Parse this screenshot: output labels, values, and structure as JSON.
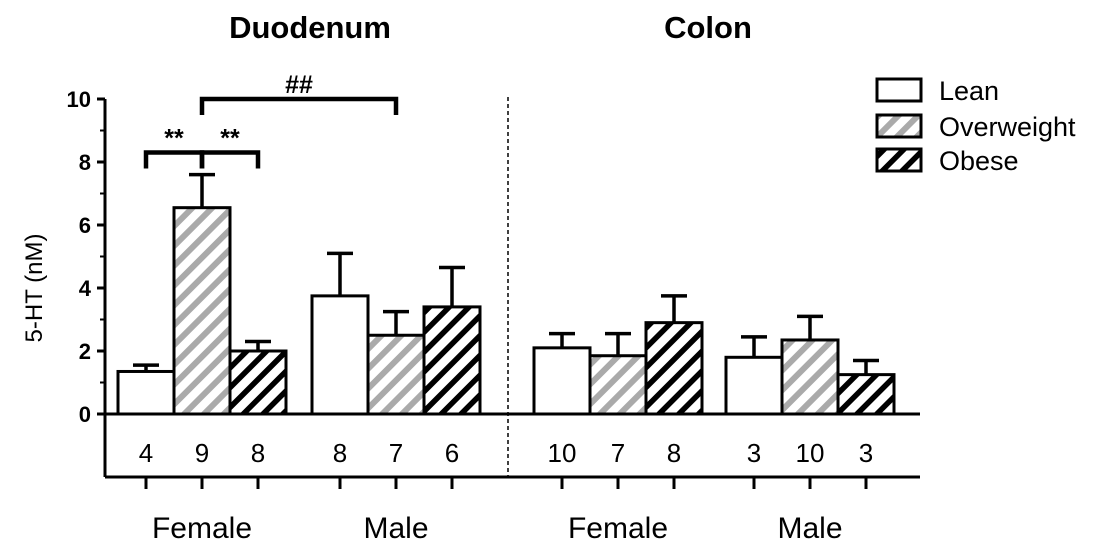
{
  "chart_data": {
    "type": "bar",
    "ylabel": "5-HT (nM)",
    "ylim": [
      0,
      10
    ],
    "yticks": [
      "0",
      "2",
      "4",
      "6",
      "8",
      "10"
    ],
    "panels": [
      {
        "title": "Duodenum",
        "groups": [
          {
            "label": "Female",
            "values": [
              1.35,
              6.55,
              2.0
            ],
            "errors": [
              0.2,
              1.05,
              0.3
            ],
            "n": [
              "4",
              "9",
              "8"
            ]
          },
          {
            "label": "Male",
            "values": [
              3.75,
              2.5,
              3.4
            ],
            "errors": [
              1.35,
              0.75,
              1.25
            ],
            "n": [
              "8",
              "7",
              "6"
            ]
          }
        ]
      },
      {
        "title": "Colon",
        "groups": [
          {
            "label": "Female",
            "values": [
              2.1,
              1.85,
              2.9
            ],
            "errors": [
              0.45,
              0.7,
              0.85
            ],
            "n": [
              "10",
              "7",
              "8"
            ]
          },
          {
            "label": "Male",
            "values": [
              1.8,
              2.35,
              1.25
            ],
            "errors": [
              0.65,
              0.75,
              0.45
            ],
            "n": [
              "3",
              "10",
              "3"
            ]
          }
        ]
      }
    ],
    "series": [
      {
        "name": "Lean",
        "fill": "white"
      },
      {
        "name": "Overweight",
        "fill": "grey-hatch"
      },
      {
        "name": "Obese",
        "fill": "black-hatch"
      }
    ],
    "legend": "top-right",
    "annotations": [
      {
        "text": "**",
        "from": [
          0,
          0,
          0
        ],
        "to": [
          0,
          0,
          1
        ],
        "y": 8.3
      },
      {
        "text": "**",
        "from": [
          0,
          0,
          1
        ],
        "to": [
          0,
          0,
          2
        ],
        "y": 8.3
      },
      {
        "text": "##",
        "from": [
          0,
          0,
          1
        ],
        "to": [
          0,
          1,
          1
        ],
        "y": 10.0
      }
    ],
    "colors": {
      "grey_hatch": "#aaaaaa",
      "black_hatch": "#000000",
      "axis": "#000000"
    }
  }
}
